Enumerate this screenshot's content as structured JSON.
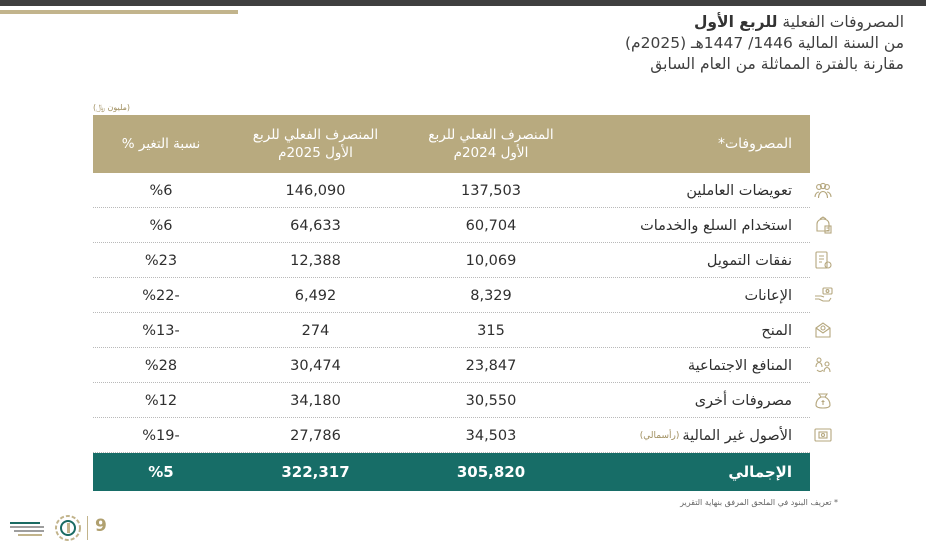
{
  "heading": {
    "line1_normal": "المصروفات الفعلية ",
    "line1_bold": "للربع الأول",
    "line2": "من السنة المالية 1446/ 1447هـ (2025م)",
    "line3": "مقارنة بالفترة المماثلة من العام السابق"
  },
  "unit_label": "(مليون ﷼)",
  "table": {
    "headers": {
      "category": "المصروفات*",
      "q1_2024": "المنصرف الفعلي للربع الأول 2024م",
      "q1_2025": "المنصرف الفعلي للربع الأول 2025م",
      "change": "نسبة التغير %"
    },
    "rows": [
      {
        "name": "تعويضات العاملين",
        "note": "",
        "q1_2024": "137,503",
        "q1_2025": "146,090",
        "change": "%6",
        "icon": "employees-icon"
      },
      {
        "name": "استخدام السلع والخدمات",
        "note": "",
        "q1_2024": "60,704",
        "q1_2025": "64,633",
        "change": "%6",
        "icon": "goods-services-icon"
      },
      {
        "name": "نفقات التمويل",
        "note": "",
        "q1_2024": "10,069",
        "q1_2025": "12,388",
        "change": "%23",
        "icon": "financing-icon"
      },
      {
        "name": "الإعانات",
        "note": "",
        "q1_2024": "8,329",
        "q1_2025": "6,492",
        "change": "%22-",
        "icon": "subsidies-icon"
      },
      {
        "name": "المنح",
        "note": "",
        "q1_2024": "315",
        "q1_2025": "274",
        "change": "%13-",
        "icon": "grants-icon"
      },
      {
        "name": "المنافع الاجتماعية",
        "note": "",
        "q1_2024": "23,847",
        "q1_2025": "30,474",
        "change": "%28",
        "icon": "social-benefits-icon"
      },
      {
        "name": "مصروفات أخرى",
        "note": "",
        "q1_2024": "30,550",
        "q1_2025": "34,180",
        "change": "%12",
        "icon": "other-expenses-icon"
      },
      {
        "name": "الأصول غير المالية",
        "note": "(رأسمالي)",
        "q1_2024": "34,503",
        "q1_2025": "27,786",
        "change": "%19-",
        "icon": "non-financial-assets-icon"
      }
    ],
    "total": {
      "name": "الإجمالي",
      "q1_2024": "305,820",
      "q1_2025": "322,317",
      "change": "%5"
    }
  },
  "footnote": "* تعريف البنود في الملحق المرفق بنهاية التقرير",
  "page_number": "9",
  "colors": {
    "header_bg": "#b8aa7f",
    "total_bg": "#176d67",
    "accent": "#c2b48c",
    "icon_color": "#b5a77e"
  }
}
